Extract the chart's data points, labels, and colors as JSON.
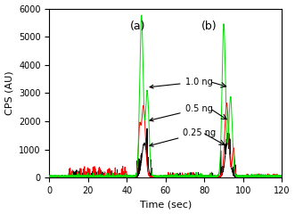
{
  "xlabel": "Time (sec)",
  "ylabel": "CPS (AU)",
  "xlim": [
    0,
    120
  ],
  "ylim": [
    0,
    6000
  ],
  "yticks": [
    0,
    1000,
    2000,
    3000,
    4000,
    5000,
    6000
  ],
  "xticks": [
    0,
    20,
    40,
    60,
    80,
    100,
    120
  ],
  "colors": {
    "green": "#00dd00",
    "red": "#ff0000",
    "black": "#000000"
  },
  "background_color": "#ffffff",
  "label_a": "(a)",
  "label_b": "(b)",
  "ann_1ng": "1.0 ng",
  "ann_05ng": "0.5 ng",
  "ann_025ng": "0.25 ng"
}
